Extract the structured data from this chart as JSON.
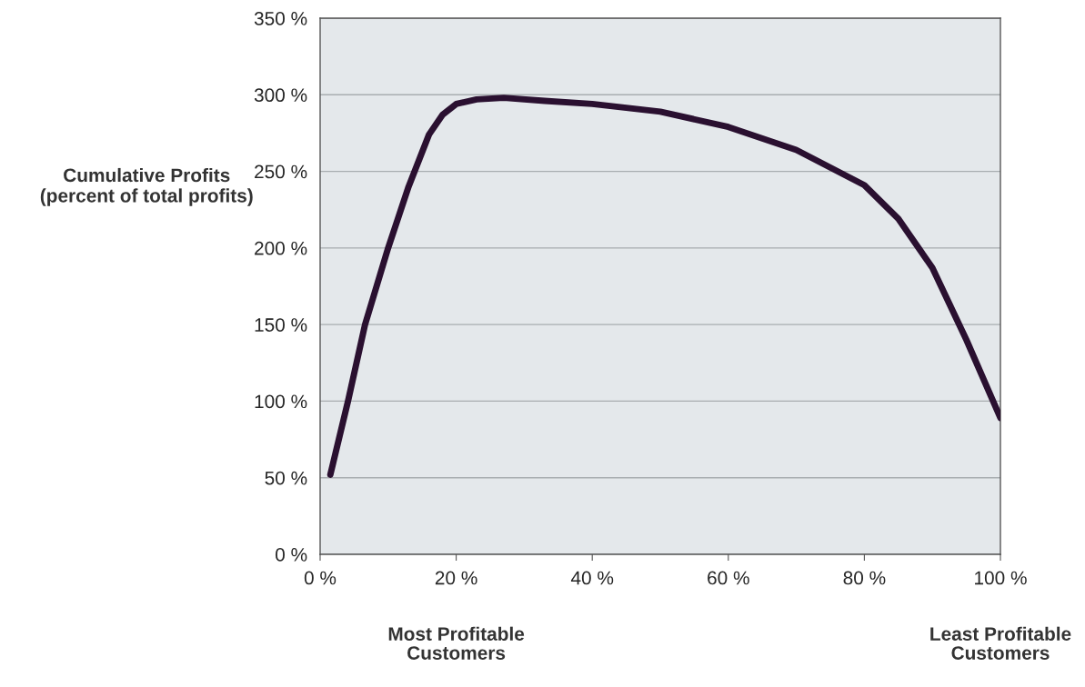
{
  "chart_data": {
    "type": "line",
    "ylabel": "Cumulative Profits\n(percent of total profits)",
    "x": [
      1.5,
      4.1,
      6.6,
      10,
      13,
      16,
      18,
      20,
      23,
      27,
      33,
      40,
      50,
      60,
      70,
      80,
      85,
      90,
      95,
      100
    ],
    "series": [
      {
        "color": "#2a1030",
        "values": [
          52,
          100,
          150,
          200,
          240,
          274,
          287,
          294,
          297,
          298,
          296,
          294,
          289,
          279,
          264,
          241,
          219,
          187,
          140,
          89
        ]
      }
    ],
    "xlim": [
      0,
      100
    ],
    "ylim": [
      0,
      350
    ],
    "xticks": [
      {
        "value": 0,
        "label": "0 %"
      },
      {
        "value": 20,
        "label": "20 %"
      },
      {
        "value": 40,
        "label": "40 %"
      },
      {
        "value": 60,
        "label": "60 %"
      },
      {
        "value": 80,
        "label": "80 %"
      },
      {
        "value": 100,
        "label": "100 %"
      }
    ],
    "yticks": [
      {
        "value": 0,
        "label": "0 %"
      },
      {
        "value": 50,
        "label": "50 %"
      },
      {
        "value": 100,
        "label": "100 %"
      },
      {
        "value": 150,
        "label": "150 %"
      },
      {
        "value": 200,
        "label": "200 %"
      },
      {
        "value": 250,
        "label": "250 %"
      },
      {
        "value": 300,
        "label": "300 %"
      },
      {
        "value": 350,
        "label": "350 %"
      }
    ],
    "grid": "y",
    "marker": "none",
    "line_style": "solid",
    "annotations": [
      "Most Profitable\nCustomers",
      "Least Profitable\nCustomers"
    ]
  }
}
